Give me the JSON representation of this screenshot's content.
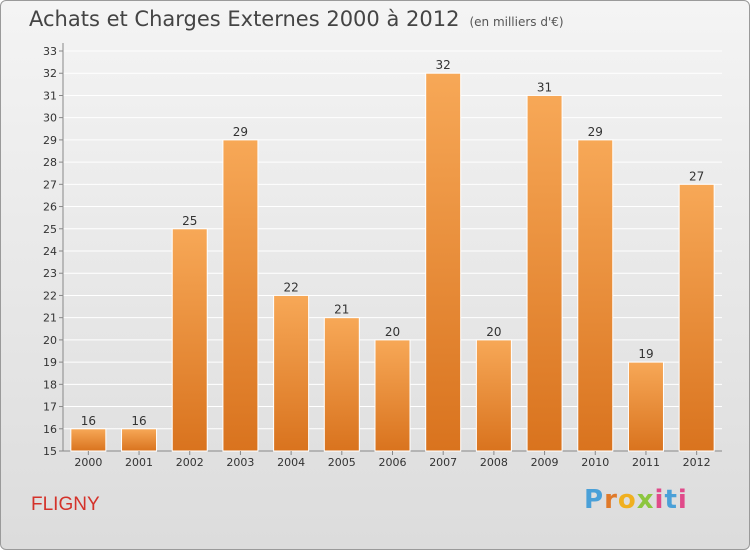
{
  "title": "Achats et Charges Externes 2000 à 2012",
  "unit_note": "(en milliers d'€)",
  "commune": "FLIGNY",
  "logo": {
    "brand": "Proxiti",
    "letters": [
      "P",
      "r",
      "o",
      "x",
      "i",
      "t",
      "i"
    ]
  },
  "colors": {
    "bar_light": "#f7a857",
    "bar_dark": "#d9731e",
    "grid": "#ffffff",
    "title": "#444444",
    "commune": "#d4322a"
  },
  "chart_data": {
    "type": "bar",
    "title": "Achats et Charges Externes 2000 à 2012",
    "subtitle": "(en milliers d'€)",
    "xlabel": "",
    "ylabel": "",
    "categories": [
      "2000",
      "2001",
      "2002",
      "2003",
      "2004",
      "2005",
      "2006",
      "2007",
      "2008",
      "2009",
      "2010",
      "2011",
      "2012"
    ],
    "values": [
      16,
      16,
      25,
      29,
      22,
      21,
      20,
      32,
      20,
      31,
      29,
      19,
      27
    ],
    "ylim": [
      15,
      33
    ],
    "yticks": [
      15,
      16,
      17,
      18,
      19,
      20,
      21,
      22,
      23,
      24,
      25,
      26,
      27,
      28,
      29,
      30,
      31,
      32,
      33
    ],
    "grid": true,
    "data_labels": true
  }
}
